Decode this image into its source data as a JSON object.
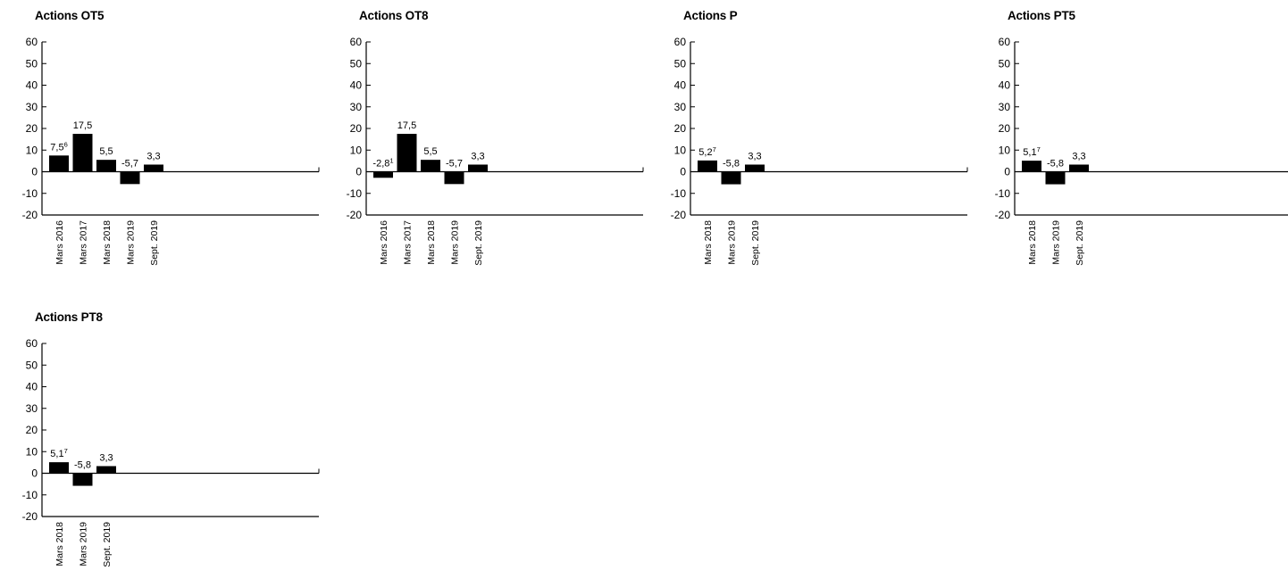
{
  "chart_data": [
    {
      "type": "bar",
      "title": "Actions OT5",
      "categories": [
        "Mars 2016",
        "Mars 2017",
        "Mars 2018",
        "Mars 2019",
        "Sept. 2019"
      ],
      "values": [
        7.5,
        17.5,
        5.5,
        -5.7,
        3.3
      ],
      "labels": [
        "7,5",
        "17,5",
        "5,5",
        "-5,7",
        "3,3"
      ],
      "label_notes": [
        "6",
        "",
        "",
        "",
        ""
      ],
      "ylim": [
        -20,
        60
      ],
      "yticks": [
        60,
        50,
        40,
        30,
        20,
        10,
        0,
        -10,
        -20
      ],
      "bar_color": "#000000"
    },
    {
      "type": "bar",
      "title": "Actions OT8",
      "categories": [
        "Mars 2016",
        "Mars 2017",
        "Mars 2018",
        "Mars 2019",
        "Sept. 2019"
      ],
      "values": [
        -2.8,
        17.5,
        5.5,
        -5.7,
        3.3
      ],
      "labels": [
        "-2,8",
        "17,5",
        "5,5",
        "-5,7",
        "3,3"
      ],
      "label_notes": [
        "1",
        "",
        "",
        "",
        ""
      ],
      "ylim": [
        -20,
        60
      ],
      "yticks": [
        60,
        50,
        40,
        30,
        20,
        10,
        0,
        -10,
        -20
      ],
      "bar_color": "#000000"
    },
    {
      "type": "bar",
      "title": "Actions P",
      "categories": [
        "Mars 2018",
        "Mars 2019",
        "Sept. 2019"
      ],
      "values": [
        5.2,
        -5.8,
        3.3
      ],
      "labels": [
        "5,2",
        "-5,8",
        "3,3"
      ],
      "label_notes": [
        "7",
        "",
        ""
      ],
      "ylim": [
        -20,
        60
      ],
      "yticks": [
        60,
        50,
        40,
        30,
        20,
        10,
        0,
        -10,
        -20
      ],
      "bar_color": "#000000"
    },
    {
      "type": "bar",
      "title": "Actions PT5",
      "categories": [
        "Mars 2018",
        "Mars 2019",
        "Sept. 2019"
      ],
      "values": [
        5.1,
        -5.8,
        3.3
      ],
      "labels": [
        "5,1",
        "-5,8",
        "3,3"
      ],
      "label_notes": [
        "7",
        "",
        ""
      ],
      "ylim": [
        -20,
        60
      ],
      "yticks": [
        60,
        50,
        40,
        30,
        20,
        10,
        0,
        -10,
        -20
      ],
      "bar_color": "#000000"
    },
    {
      "type": "bar",
      "title": "Actions PT8",
      "categories": [
        "Mars 2018",
        "Mars 2019",
        "Sept. 2019"
      ],
      "values": [
        5.1,
        -5.8,
        3.3
      ],
      "labels": [
        "5,1",
        "-5,8",
        "3,3"
      ],
      "label_notes": [
        "7",
        "",
        ""
      ],
      "ylim": [
        -20,
        60
      ],
      "yticks": [
        60,
        50,
        40,
        30,
        20,
        10,
        0,
        -10,
        -20
      ],
      "bar_color": "#000000"
    }
  ]
}
